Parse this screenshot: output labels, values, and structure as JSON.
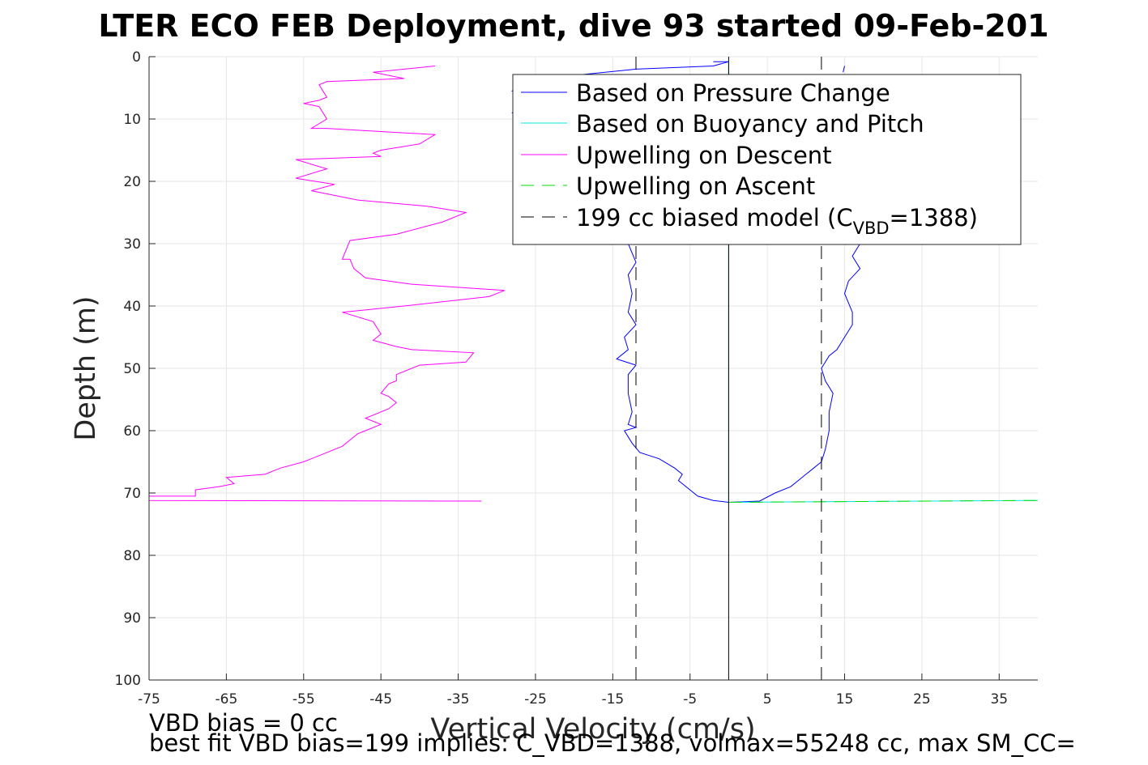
{
  "chart_data": {
    "type": "line",
    "title": "LTER ECO FEB Deployment, dive 93 started 09-Feb-201",
    "xlabel": "Vertical Velocity (cm/s)",
    "ylabel": "Depth (m)",
    "xlim": [
      -75,
      40
    ],
    "ylim": [
      0,
      100
    ],
    "y_reversed": true,
    "grid": true,
    "xticks": [
      "-75",
      "-65",
      "-55",
      "-45",
      "-35",
      "-25",
      "-15",
      "-5",
      "5",
      "15",
      "25",
      "35"
    ],
    "yticks": [
      "0",
      "10",
      "20",
      "30",
      "40",
      "50",
      "60",
      "70",
      "80",
      "90",
      "100"
    ],
    "legend": {
      "position": "top-right",
      "entries": [
        {
          "label": "Based on Pressure Change",
          "color": "#0000ff",
          "style": "solid"
        },
        {
          "label": "Based on Buoyancy and Pitch",
          "color": "#00e5e5",
          "style": "solid"
        },
        {
          "label": "Upwelling on Descent",
          "color": "#ff00ff",
          "style": "solid"
        },
        {
          "label": "Upwelling on Ascent",
          "color": "#00dd00",
          "style": "dashed"
        },
        {
          "label_main": "199 cc biased model (C",
          "label_sub": "VBD",
          "label_end": "=1388)",
          "color": "#000000",
          "style": "dashed"
        }
      ]
    },
    "series": [
      {
        "name": "Based on Pressure Change",
        "color": "#0000ff",
        "points": [
          [
            -2,
            0.8
          ],
          [
            0,
            0.8
          ],
          [
            -2,
            1.5
          ],
          [
            -12,
            2
          ],
          [
            -20,
            3
          ],
          [
            -25,
            4
          ],
          [
            -28,
            5.5
          ],
          [
            -25,
            7
          ],
          [
            -28,
            9
          ],
          [
            -24,
            12
          ],
          [
            -20,
            15
          ],
          [
            -16,
            18
          ],
          [
            -14,
            22
          ],
          [
            -13,
            26
          ],
          [
            -13,
            30
          ],
          [
            -12,
            33
          ],
          [
            -13,
            35
          ],
          [
            -12.5,
            38
          ],
          [
            -13,
            41
          ],
          [
            -12,
            43
          ],
          [
            -13.5,
            45
          ],
          [
            -13,
            47
          ],
          [
            -14.5,
            48.5
          ],
          [
            -12,
            49.5
          ],
          [
            -13,
            51
          ],
          [
            -13,
            54
          ],
          [
            -12.5,
            57
          ],
          [
            -13,
            59
          ],
          [
            -12,
            59.5
          ],
          [
            -13.5,
            60
          ],
          [
            -12.5,
            62
          ],
          [
            -11.5,
            63.5
          ],
          [
            -9,
            64.5
          ],
          [
            -7,
            66
          ],
          [
            -6,
            67
          ],
          [
            -6.5,
            68
          ],
          [
            -5,
            69.5
          ],
          [
            -4,
            70.5
          ],
          [
            -2,
            71.2
          ],
          [
            0,
            71.5
          ],
          [
            4,
            71.3
          ],
          [
            6,
            70
          ],
          [
            8,
            69
          ],
          [
            9,
            68
          ],
          [
            10,
            67
          ],
          [
            11,
            66
          ],
          [
            12,
            65
          ],
          [
            12.5,
            63
          ],
          [
            13,
            60
          ],
          [
            13,
            57
          ],
          [
            13.5,
            54
          ],
          [
            12.5,
            52
          ],
          [
            12,
            50
          ],
          [
            13,
            48
          ],
          [
            14,
            47
          ],
          [
            15,
            45
          ],
          [
            16,
            43
          ],
          [
            16,
            41
          ],
          [
            15,
            38
          ],
          [
            15.5,
            36
          ],
          [
            17,
            34
          ],
          [
            16,
            32
          ],
          [
            17,
            30
          ]
        ]
      },
      {
        "name": "Based on Pressure Change (upper ascent)",
        "color": "#0000ff",
        "points": [
          [
            15,
            1.5
          ],
          [
            14.8,
            2.5
          ]
        ]
      },
      {
        "name": "Based on Buoyancy and Pitch",
        "color": "#00e5e5",
        "points": [
          [
            0,
            0.8
          ],
          [
            0,
            71.5
          ],
          [
            40,
            71.2
          ]
        ]
      },
      {
        "name": "Upwelling on Descent",
        "color": "#ff00ff",
        "points": [
          [
            -38,
            1.5
          ],
          [
            -46,
            2.5
          ],
          [
            -42,
            3.5
          ],
          [
            -52,
            4
          ],
          [
            -53,
            4.5
          ],
          [
            -52,
            6.5
          ],
          [
            -53,
            7
          ],
          [
            -55,
            7.5
          ],
          [
            -53,
            8
          ],
          [
            -52,
            10
          ],
          [
            -54,
            11.5
          ],
          [
            -52,
            11.5
          ],
          [
            -38,
            12.5
          ],
          [
            -40,
            14
          ],
          [
            -45,
            15
          ],
          [
            -46,
            15.5
          ],
          [
            -45,
            16
          ],
          [
            -56,
            16.5
          ],
          [
            -52,
            18
          ],
          [
            -56,
            19.5
          ],
          [
            -51,
            20.5
          ],
          [
            -54,
            21.5
          ],
          [
            -48,
            23
          ],
          [
            -39,
            24
          ],
          [
            -34,
            25
          ],
          [
            -37,
            26.5
          ],
          [
            -43,
            28.5
          ],
          [
            -49,
            29.5
          ],
          [
            -49.5,
            31
          ],
          [
            -50,
            32.5
          ],
          [
            -49,
            32.5
          ],
          [
            -48.5,
            34
          ],
          [
            -47,
            35.5
          ],
          [
            -41,
            36.5
          ],
          [
            -29,
            37.5
          ],
          [
            -31,
            38.5
          ],
          [
            -42,
            40
          ],
          [
            -50,
            41
          ],
          [
            -46,
            42.5
          ],
          [
            -45,
            44.5
          ],
          [
            -46,
            45.5
          ],
          [
            -43,
            46.5
          ],
          [
            -41,
            47
          ],
          [
            -33,
            47.5
          ],
          [
            -34,
            49
          ],
          [
            -40,
            49.5
          ],
          [
            -43,
            51
          ],
          [
            -43,
            52
          ],
          [
            -44,
            52.5
          ],
          [
            -45,
            54
          ],
          [
            -44,
            54.5
          ],
          [
            -43,
            55.5
          ],
          [
            -44,
            56.5
          ],
          [
            -46,
            57.5
          ],
          [
            -47,
            58
          ],
          [
            -45,
            59
          ],
          [
            -47,
            60
          ],
          [
            -48,
            60.5
          ],
          [
            -49,
            61.5
          ],
          [
            -50,
            62.5
          ],
          [
            -55,
            65
          ],
          [
            -58,
            66
          ],
          [
            -60,
            67
          ],
          [
            -65,
            67.5
          ],
          [
            -64,
            68.5
          ],
          [
            -66,
            69
          ],
          [
            -69,
            69.5
          ],
          [
            -69,
            70.5
          ],
          [
            -75,
            70.5
          ],
          [
            -75,
            71.2
          ],
          [
            -32,
            71.3
          ]
        ]
      },
      {
        "name": "Upwelling on Ascent",
        "color": "#00dd00",
        "dashed": true,
        "points": [
          [
            0,
            71.5
          ],
          [
            40,
            71.2
          ]
        ]
      },
      {
        "name": "199 cc biased model (C_VBD=1388)",
        "color": "#000000",
        "dashed": true,
        "points": [
          [
            -12,
            0
          ],
          [
            -12,
            100
          ]
        ]
      },
      {
        "name": "199 cc biased model (C_VBD=1388) ascent",
        "color": "#000000",
        "dashed": true,
        "points": [
          [
            12,
            0
          ],
          [
            12,
            100
          ]
        ]
      },
      {
        "name": "zero line",
        "color": "#000000",
        "points": [
          [
            0,
            0
          ],
          [
            0,
            100
          ]
        ]
      }
    ],
    "annotations": [
      "VBD bias = 0 cc",
      "best fit VBD bias=199 implies: C_VBD=1388, volmax=55248 cc, max SM_CC="
    ]
  }
}
